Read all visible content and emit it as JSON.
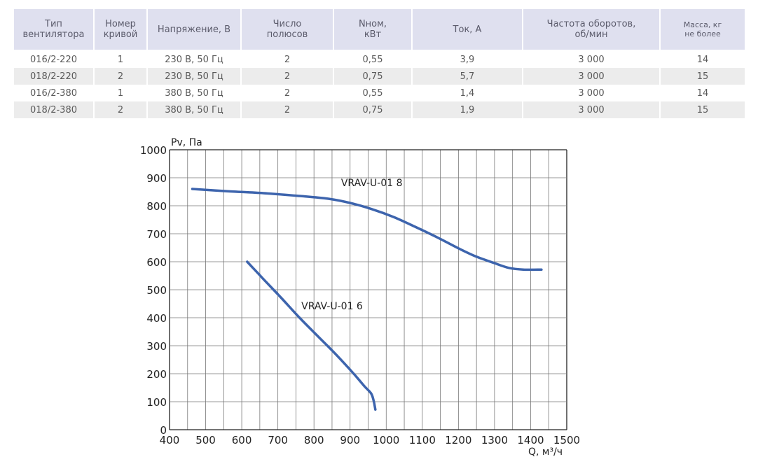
{
  "table": {
    "headers": [
      "Тип\nвентилятора",
      "Номер\nкривой",
      "Напряжение, В",
      "Число\nполюсов",
      "Nном,\nкВт",
      "Ток, А",
      "Частота оборотов,\nоб/мин",
      "Масса, кг\nне более"
    ],
    "rows": [
      [
        "016/2-220",
        "1",
        "230 В, 50 Гц",
        "2",
        "0,55",
        "3,9",
        "3 000",
        "14"
      ],
      [
        "018/2-220",
        "2",
        "230 В, 50 Гц",
        "2",
        "0,75",
        "5,7",
        "3 000",
        "15"
      ],
      [
        "016/2-380",
        "1",
        "380 В, 50 Гц",
        "2",
        "0,55",
        "1,4",
        "3 000",
        "14"
      ],
      [
        "018/2-380",
        "2",
        "380 В, 50 Гц",
        "2",
        "0,75",
        "1,9",
        "3 000",
        "15"
      ]
    ]
  },
  "chart_data": {
    "type": "line",
    "xlabel": "Q, м³/ч",
    "ylabel": "Pv, Па",
    "xlim": [
      400,
      1500
    ],
    "ylim": [
      0,
      1000
    ],
    "x_ticks": [
      "400",
      "500",
      "600",
      "700",
      "800",
      "900",
      "1000",
      "1100",
      "1200",
      "1300",
      "1400",
      "1500"
    ],
    "y_ticks": [
      "0",
      "100",
      "200",
      "300",
      "400",
      "500",
      "600",
      "700",
      "800",
      "900",
      "1000"
    ],
    "grid": true,
    "series_color": "#3d64ad",
    "series": [
      {
        "name": "VRAV-U-018",
        "x": [
          463,
          560,
          660,
          760,
          840,
          900,
          960,
          1020,
          1080,
          1140,
          1200,
          1250,
          1300,
          1340,
          1380,
          1430
        ],
        "y": [
          860,
          852,
          845,
          835,
          825,
          810,
          788,
          760,
          725,
          688,
          648,
          618,
          595,
          578,
          572,
          572
        ]
      },
      {
        "name": "VRAV-U-016",
        "x": [
          615,
          660,
          710,
          760,
          810,
          860,
          910,
          940,
          958,
          965,
          970
        ],
        "y": [
          600,
          538,
          470,
          400,
          335,
          270,
          200,
          155,
          130,
          105,
          72
        ]
      }
    ],
    "labels": {
      "series_0_label": "VRAV-U-01 8",
      "series_1_label": "VRAV-U-01 6"
    }
  }
}
